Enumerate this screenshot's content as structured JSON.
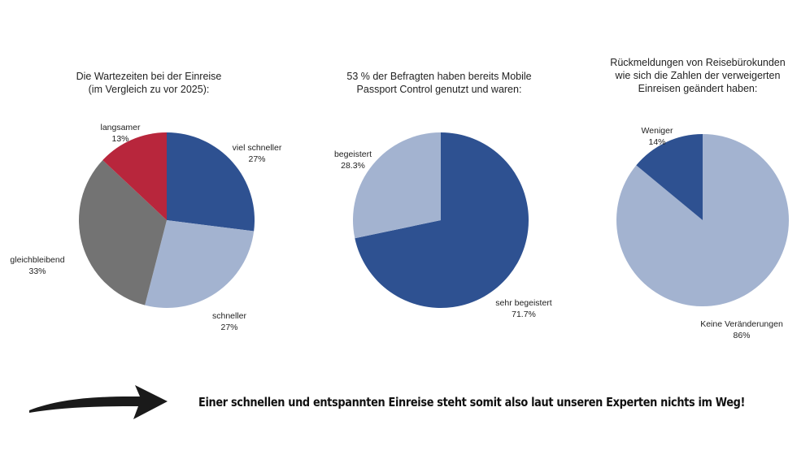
{
  "chart_data": [
    {
      "type": "pie",
      "title_lines": [
        "Die Wartezeiten bei der Einreise",
        "(im Vergleich zu vor 2025):"
      ],
      "slices": [
        {
          "name": "viel schneller",
          "value": 27,
          "pct_label": "27%",
          "color": "#2e5191"
        },
        {
          "name": "schneller",
          "value": 27,
          "pct_label": "27%",
          "color": "#a3b3d0"
        },
        {
          "name": "gleichbleibend",
          "value": 33,
          "pct_label": "33%",
          "color": "#737373"
        },
        {
          "name": "langsamer",
          "value": 13,
          "pct_label": "13%",
          "color": "#b8263c"
        }
      ]
    },
    {
      "type": "pie",
      "title_lines": [
        "53 % der Befragten haben bereits Mobile",
        "Passport Control genutzt und waren:"
      ],
      "slices": [
        {
          "name": "sehr begeistert",
          "value": 71.7,
          "pct_label": "71.7%",
          "color": "#2e5191"
        },
        {
          "name": "begeistert",
          "value": 28.3,
          "pct_label": "28.3%",
          "color": "#a3b3d0"
        }
      ]
    },
    {
      "type": "pie",
      "title_lines": [
        "Rückmeldungen von Reisebürokunden",
        "wie sich die Zahlen der verweigerten",
        "Einreisen geändert haben:"
      ],
      "slices": [
        {
          "name": "Keine Veränderungen",
          "value": 86,
          "pct_label": "86%",
          "color": "#a3b3d0"
        },
        {
          "name": "Weniger",
          "value": 14,
          "pct_label": "14%",
          "color": "#2e5191"
        }
      ]
    }
  ],
  "footer": {
    "text": "Einer schnellen und entspannten Einreise steht somit also laut unseren Experten nichts im Weg!",
    "arrow_icon": "arrow-right-icon"
  }
}
